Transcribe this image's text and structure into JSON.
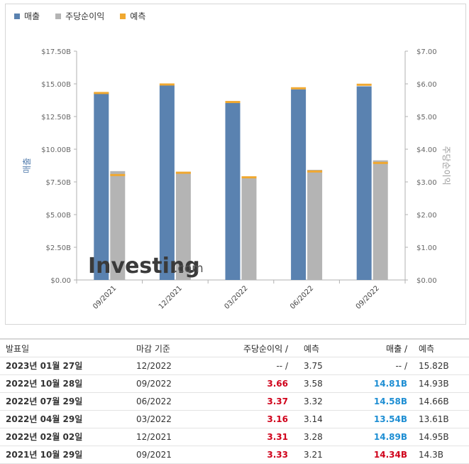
{
  "legend": {
    "revenue_label": "매출",
    "eps_label": "주당순이익",
    "forecast_label": "예측"
  },
  "colors": {
    "revenue": "#5a82b0",
    "eps": "#b4b4b4",
    "forecast": "#f0a830",
    "beat": "#d0021b",
    "revenue_value": "#1e8ed3"
  },
  "watermark": {
    "brand_main": "Investing",
    "brand_suffix": ".com"
  },
  "chart_data": {
    "type": "bar",
    "categories": [
      "09/2021",
      "12/2021",
      "03/2022",
      "06/2022",
      "09/2022"
    ],
    "series": [
      {
        "name": "매출",
        "axis": "left",
        "unit": "B",
        "values": [
          14.34,
          14.89,
          13.54,
          14.58,
          14.81
        ]
      },
      {
        "name": "주당순이익",
        "axis": "right",
        "values": [
          3.33,
          3.31,
          3.16,
          3.37,
          3.66
        ]
      },
      {
        "name": "예측",
        "kind": "forecast",
        "revenue_values": [
          14.3,
          14.95,
          13.61,
          14.66,
          14.93
        ],
        "eps_values": [
          3.21,
          3.28,
          3.14,
          3.32,
          3.58
        ]
      }
    ],
    "ylabel": "매출",
    "y2label": "주당순이익",
    "ylim": [
      0,
      17.5
    ],
    "y2lim": [
      0,
      7
    ],
    "yticks": [
      "$0.00",
      "$2.50B",
      "$5.00B",
      "$7.50B",
      "$10.00B",
      "$12.50B",
      "$15.00B",
      "$17.50B"
    ],
    "y2ticks": [
      "$0.00",
      "$1.00",
      "$2.00",
      "$3.00",
      "$4.00",
      "$5.00",
      "$6.00",
      "$7.00"
    ],
    "grid": false,
    "legend_position": "top-left"
  },
  "table": {
    "headers": {
      "date": "발표일",
      "period": "마감 기준",
      "eps": "주당순이익 /",
      "eps_forecast": "예측",
      "revenue": "매출 /",
      "revenue_forecast": "예측"
    },
    "rows": [
      {
        "date": "2023년 01월 27일",
        "period": "12/2022",
        "eps": "-- /",
        "eps_forecast": "3.75",
        "revenue": "-- /",
        "revenue_forecast": "15.82B",
        "eps_color": "plain",
        "rev_color": "plain"
      },
      {
        "date": "2022년 10월 28일",
        "period": "09/2022",
        "eps": "3.66",
        "eps_forecast": "3.58",
        "revenue": "14.81B",
        "revenue_forecast": "14.93B",
        "eps_color": "red",
        "rev_color": "blue"
      },
      {
        "date": "2022년 07월 29일",
        "period": "06/2022",
        "eps": "3.37",
        "eps_forecast": "3.32",
        "revenue": "14.58B",
        "revenue_forecast": "14.66B",
        "eps_color": "red",
        "rev_color": "blue"
      },
      {
        "date": "2022년 04월 29일",
        "period": "03/2022",
        "eps": "3.16",
        "eps_forecast": "3.14",
        "revenue": "13.54B",
        "revenue_forecast": "13.61B",
        "eps_color": "red",
        "rev_color": "blue"
      },
      {
        "date": "2022년 02월 02일",
        "period": "12/2021",
        "eps": "3.31",
        "eps_forecast": "3.28",
        "revenue": "14.89B",
        "revenue_forecast": "14.95B",
        "eps_color": "red",
        "rev_color": "blue"
      },
      {
        "date": "2021년 10월 29일",
        "period": "09/2021",
        "eps": "3.33",
        "eps_forecast": "3.21",
        "revenue": "14.34B",
        "revenue_forecast": "14.3B",
        "eps_color": "red",
        "rev_color": "red"
      }
    ]
  }
}
